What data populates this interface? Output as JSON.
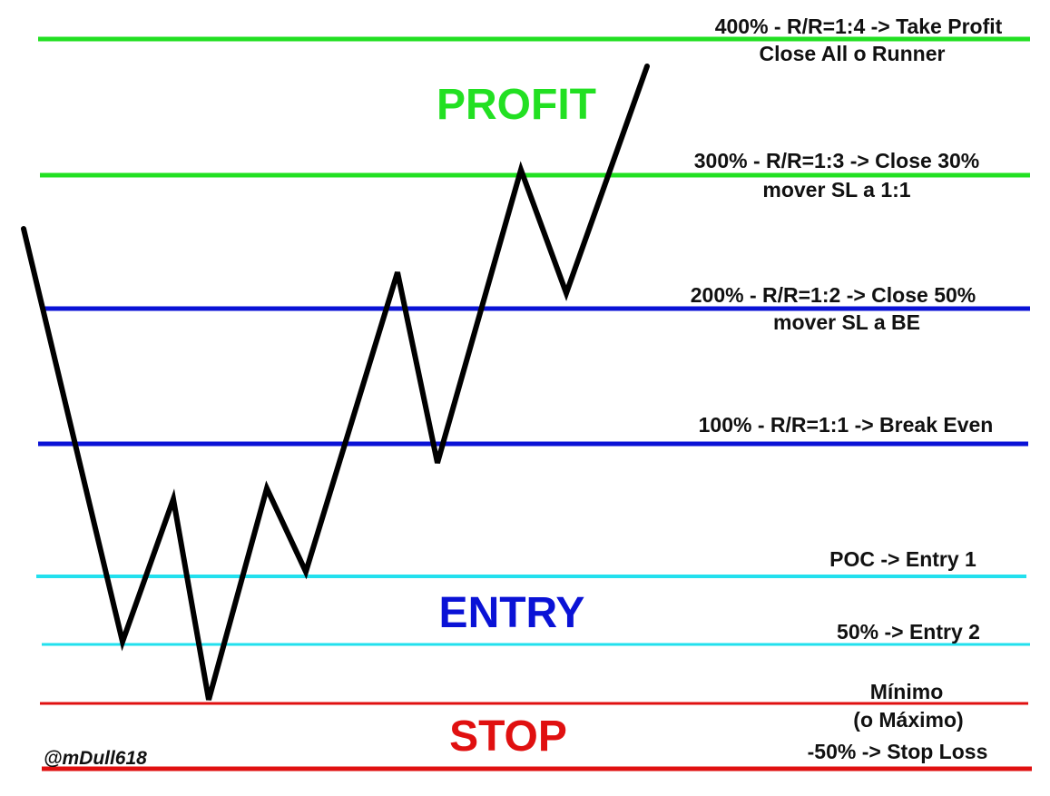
{
  "levels": [
    {
      "id": "level-400",
      "color": "#22e022",
      "lines": [
        "400% - R/R=1:4 -> Take Profit",
        "Close All o Runner"
      ]
    },
    {
      "id": "level-300",
      "color": "#22e022",
      "lines": [
        "300% - R/R=1:3 -> Close 30%",
        "mover SL a 1:1"
      ]
    },
    {
      "id": "level-200",
      "color": "#0a12d6",
      "lines": [
        "200% - R/R=1:2 -> Close 50%",
        "mover SL a BE"
      ]
    },
    {
      "id": "level-100",
      "color": "#0a12d6",
      "lines": [
        "100% - R/R=1:1 -> Break Even"
      ]
    },
    {
      "id": "level-poc",
      "color": "#22e0ee",
      "lines": [
        "POC -> Entry 1"
      ]
    },
    {
      "id": "level-50",
      "color": "#22e0ee",
      "lines": [
        "50% -> Entry 2"
      ]
    },
    {
      "id": "level-minimo",
      "color": "#e01010",
      "lines": [
        "Mínimo",
        "(o Máximo)"
      ]
    },
    {
      "id": "level-stop",
      "color": "#e01010",
      "lines": [
        "-50% -> Stop Loss"
      ]
    }
  ],
  "zones": {
    "profit": {
      "label": "PROFIT",
      "color": "#22e022"
    },
    "entry": {
      "label": "ENTRY",
      "color": "#0a12d6"
    },
    "stop": {
      "label": "STOP",
      "color": "#e01010"
    }
  },
  "credit": "@mDull618",
  "price_path_color": "#000000"
}
